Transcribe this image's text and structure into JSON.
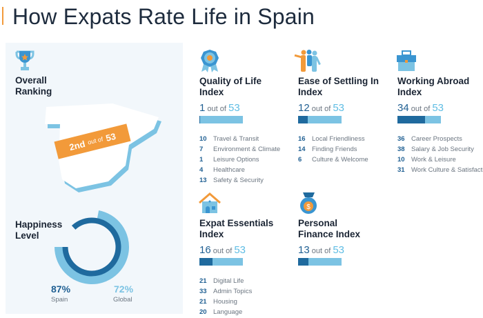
{
  "title": "How Expats Rate Life in Spain",
  "colors": {
    "accent": "#f29a3a",
    "dark_blue": "#1f6a9e",
    "light_blue": "#7cc3e3",
    "panel": "#f2f7fb"
  },
  "overall": {
    "icon": "trophy-icon",
    "label": "Overall Ranking",
    "rank": "2nd",
    "out_of": "out of",
    "total": "53"
  },
  "happiness": {
    "label": "Happiness Level",
    "spain_value": "87%",
    "spain_label": "Spain",
    "spain_pct": 87,
    "global_value": "72%",
    "global_label": "Global",
    "global_pct": 72
  },
  "indices": [
    {
      "icon": "badge-icon",
      "title": "Quality of Life Index",
      "rank": "1",
      "rank_num": 1,
      "out_of": "out of",
      "total": "53",
      "items": [
        {
          "n": "10",
          "label": "Travel & Transit"
        },
        {
          "n": "7",
          "label": "Environment & Climate"
        },
        {
          "n": "1",
          "label": "Leisure Options"
        },
        {
          "n": "4",
          "label": "Healthcare"
        },
        {
          "n": "13",
          "label": "Safety & Security"
        }
      ]
    },
    {
      "icon": "people-icon",
      "title": "Ease of Settling In Index",
      "rank": "12",
      "rank_num": 12,
      "out_of": "out of",
      "total": "53",
      "items": [
        {
          "n": "16",
          "label": "Local Friendliness"
        },
        {
          "n": "14",
          "label": "Finding Friends"
        },
        {
          "n": "6",
          "label": "Culture & Welcome"
        }
      ]
    },
    {
      "icon": "briefcase-icon",
      "title": "Working Abroad Index",
      "rank": "34",
      "rank_num": 34,
      "out_of": "out of",
      "total": "53",
      "items": [
        {
          "n": "36",
          "label": "Career Prospects"
        },
        {
          "n": "38",
          "label": "Salary & Job Security"
        },
        {
          "n": "10",
          "label": "Work & Leisure"
        },
        {
          "n": "31",
          "label": "Work Culture & Satisfaction"
        }
      ]
    },
    {
      "icon": "house-icon",
      "title": "Expat Essentials Index",
      "rank": "16",
      "rank_num": 16,
      "out_of": "out of",
      "total": "53",
      "items": [
        {
          "n": "21",
          "label": "Digital Life"
        },
        {
          "n": "33",
          "label": "Admin Topics"
        },
        {
          "n": "21",
          "label": "Housing"
        },
        {
          "n": "20",
          "label": "Language"
        }
      ]
    },
    {
      "icon": "money-bag-icon",
      "title": "Personal Finance Index",
      "rank": "13",
      "rank_num": 13,
      "out_of": "out of",
      "total": "53",
      "items": []
    }
  ]
}
